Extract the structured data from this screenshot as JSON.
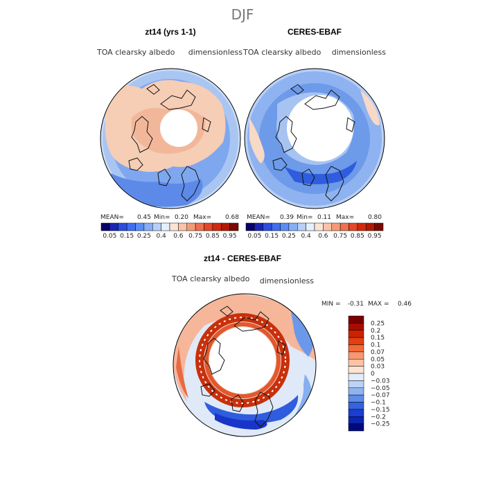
{
  "figure_title": "DJF",
  "chart_data": [
    {
      "type": "heatmap",
      "projection": "north-polar-stereographic",
      "title": "zt14 (yrs 1-1)",
      "variable": "TOA clearsky albedo",
      "units": "dimensionless",
      "stats": {
        "mean_label": "MEAN=",
        "mean": "0.45",
        "min_label": "Min=",
        "min": "0.20",
        "max_label": "Max=",
        "max": "0.68"
      },
      "colorbar": {
        "orientation": "horizontal",
        "levels": [
          0.05,
          0.1,
          0.15,
          0.2,
          0.25,
          0.3,
          0.4,
          0.5,
          0.6,
          0.7,
          0.75,
          0.8,
          0.85,
          0.9,
          0.95
        ],
        "tick_labels": [
          "0.05",
          "0.15",
          "0.25",
          "0.4",
          "0.6",
          "0.75",
          "0.85",
          "0.95"
        ],
        "colors": [
          "#08006b",
          "#1a26b3",
          "#2c4fe0",
          "#3f6ff0",
          "#5c8cf3",
          "#86aef6",
          "#b7d0f9",
          "#e6efff",
          "#fbe4d6",
          "#f8c3a8",
          "#f39b78",
          "#ee7050",
          "#e4472a",
          "#cf2a10",
          "#b01a05",
          "#7a0a00"
        ]
      }
    },
    {
      "type": "heatmap",
      "projection": "north-polar-stereographic",
      "title": "CERES-EBAF",
      "variable": "TOA clearsky albedo",
      "units": "dimensionless",
      "stats": {
        "mean_label": "MEAN=",
        "mean": "0.39",
        "min_label": "Min=",
        "min": "0.11",
        "max_label": "Max=",
        "max": "0.80"
      },
      "colorbar": {
        "orientation": "horizontal",
        "levels": [
          0.05,
          0.1,
          0.15,
          0.2,
          0.25,
          0.3,
          0.4,
          0.5,
          0.6,
          0.7,
          0.75,
          0.8,
          0.85,
          0.9,
          0.95
        ],
        "tick_labels": [
          "0.05",
          "0.15",
          "0.25",
          "0.4",
          "0.6",
          "0.75",
          "0.85",
          "0.95"
        ],
        "colors": [
          "#08006b",
          "#1a26b3",
          "#2c4fe0",
          "#3f6ff0",
          "#5c8cf3",
          "#86aef6",
          "#b7d0f9",
          "#e6efff",
          "#fbe4d6",
          "#f8c3a8",
          "#f39b78",
          "#ee7050",
          "#e4472a",
          "#cf2a10",
          "#b01a05",
          "#7a0a00"
        ]
      }
    },
    {
      "type": "heatmap",
      "projection": "north-polar-stereographic",
      "title": "zt14 - CERES-EBAF",
      "variable": "TOA clearsky albedo",
      "units": "dimensionless",
      "stats": {
        "min_label": "MIN =",
        "min": "-0.31",
        "max_label": "MAX =",
        "max": "0.46"
      },
      "colorbar": {
        "orientation": "vertical",
        "tick_labels": [
          "0.25",
          "0.2",
          "0.15",
          "0.1",
          "0.07",
          "0.05",
          "0.03",
          "0",
          "−0.03",
          "−0.05",
          "−0.07",
          "−0.1",
          "−0.15",
          "−0.2",
          "−0.25"
        ],
        "colors": [
          "#7a0000",
          "#a80d00",
          "#cc2200",
          "#e63e10",
          "#f26a38",
          "#f79870",
          "#fbc4a6",
          "#fde3d3",
          "#e3edfb",
          "#bcd3f5",
          "#8fb3ef",
          "#5e8ce8",
          "#3563e0",
          "#1b3ed0",
          "#0c24b0",
          "#000a7a"
        ]
      }
    }
  ]
}
